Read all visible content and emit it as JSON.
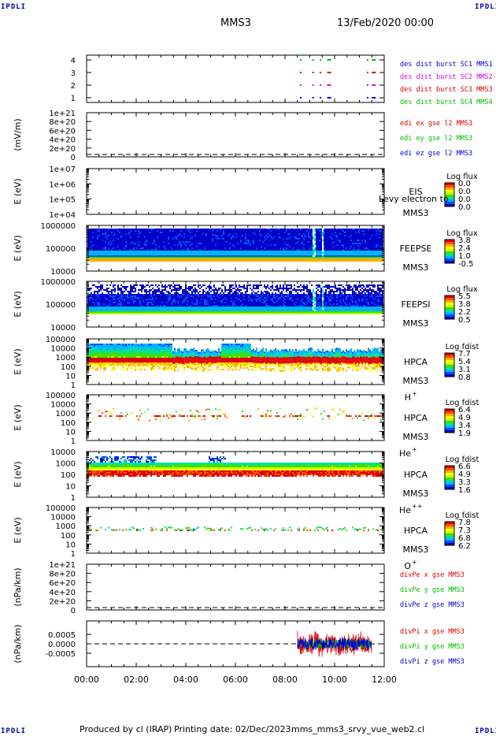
{
  "corner_label": "IPDLI",
  "header": {
    "spacecraft": "MMS3",
    "date": "13/Feb/2020 00:00"
  },
  "footer": {
    "produced_by": "Produced by cl (IRAP)",
    "printing_date": "Printing date: 02/Dec/2023",
    "script_name": "mms_mms3_srvy_vue_web2.cl"
  },
  "colors": {
    "mms1": "#0000cc",
    "mms2": "#dd00dd",
    "mms3": "#dd0000",
    "mms4": "#00bb00",
    "axis": "#000000"
  },
  "chart_data": [
    {
      "id": "burst",
      "type": "scatter",
      "ylabel": "",
      "ylim": [
        0.5,
        4.5
      ],
      "yticks": [
        "1",
        "2",
        "3",
        "4"
      ],
      "series": [
        {
          "name": "des dist burst SC1 MMS1",
          "y": 4,
          "x": [
            8.6,
            9.1,
            9.4,
            9.7,
            11.3,
            11.5
          ],
          "color": "#00bb00"
        },
        {
          "name": "des dist burst SC2 MMS2",
          "y": 3,
          "x": [
            8.6,
            9.1,
            9.4,
            9.7,
            11.3,
            11.5
          ],
          "color": "#dd0000"
        },
        {
          "name": "des dist burst SC3 MMS3",
          "y": 2,
          "x": [
            8.6,
            9.1,
            9.4,
            9.7,
            11.3,
            11.5
          ],
          "color": "#dd00dd"
        },
        {
          "name": "des dist burst SC4 MMS4",
          "y": 1,
          "x": [
            8.6,
            9.1,
            9.4,
            9.7,
            11.3,
            11.5
          ],
          "color": "#0000cc"
        }
      ],
      "labels": [
        {
          "text": "des dist burst SC1 MMS1",
          "color": "#0000cc"
        },
        {
          "text": "des dist burst SC2 MMS2",
          "color": "#dd00dd"
        },
        {
          "text": "des dist burst SC3 MMS3",
          "color": "#dd0000"
        },
        {
          "text": "des dist burst SC4 MMS4",
          "color": "#00bb00"
        }
      ]
    },
    {
      "id": "edi",
      "type": "line",
      "ylabel": "(mV/m)",
      "yticks": [
        "1e+21",
        "8e+20",
        "6e+20",
        "4e+20",
        "2e+20",
        "0"
      ],
      "zero_line": true,
      "labels": [
        {
          "text": "edi ex gse l2 MMS3",
          "color": "#dd0000"
        },
        {
          "text": "edi ey gse l2 MMS3",
          "color": "#00bb00"
        },
        {
          "text": "edi ez gse l2 MMS3",
          "color": "#0000cc"
        }
      ]
    },
    {
      "id": "eis",
      "type": "heatmap",
      "ylabel": "E (eV)",
      "yticks": [
        "1e+07",
        "1e+06",
        "1e+05",
        "1e+04"
      ],
      "instrument": "EIS",
      "sc": "MMS3",
      "note": "Levy electron to",
      "colorbar": {
        "title": "Log flux",
        "ticks": [
          "0.0",
          "0.0",
          "0.0",
          "0.0"
        ]
      }
    },
    {
      "id": "feepse",
      "type": "heatmap",
      "ylabel": "E (eV)",
      "yticks": [
        "1000000",
        "100000",
        "10000"
      ],
      "instrument": "FEEPSE",
      "sc": "MMS3",
      "colorbar": {
        "title": "Log flux",
        "ticks": [
          "3.8",
          "2.4",
          "1.0",
          "-0.5"
        ]
      }
    },
    {
      "id": "feepsi",
      "type": "heatmap",
      "ylabel": "E (eV)",
      "yticks": [
        "1000000",
        "100000",
        "10000"
      ],
      "instrument": "FEEPSI",
      "sc": "MMS3",
      "colorbar": {
        "title": "Log flux",
        "ticks": [
          "5.5",
          "3.8",
          "2.2",
          "0.5"
        ]
      }
    },
    {
      "id": "hpca_h",
      "type": "heatmap",
      "ylabel": "E (eV)",
      "yticks": [
        "100000",
        "10000",
        "1000",
        "100",
        "10",
        "1"
      ],
      "instrument": "HPCA",
      "sc": "MMS3",
      "species": "H",
      "species_sup": "+",
      "colorbar": {
        "title": "Log fdist",
        "ticks": [
          "7.7",
          "5.4",
          "3.1",
          "0.8"
        ]
      }
    },
    {
      "id": "hpca_he1",
      "type": "heatmap",
      "ylabel": "E (eV)",
      "yticks": [
        "100000",
        "10000",
        "1000",
        "100",
        "10",
        "1"
      ],
      "instrument": "HPCA",
      "sc": "MMS3",
      "species": "He",
      "species_sup": "+",
      "colorbar": {
        "title": "Log fdist",
        "ticks": [
          "6.4",
          "4.9",
          "3.4",
          "1.9"
        ]
      }
    },
    {
      "id": "hpca_he2",
      "type": "heatmap",
      "ylabel": "E (eV)",
      "yticks": [
        "10000",
        "1000",
        "100",
        "10",
        "1"
      ],
      "instrument": "HPCA",
      "sc": "MMS3",
      "species": "He",
      "species_sup": "++",
      "colorbar": {
        "title": "Log fdist",
        "ticks": [
          "6.6",
          "4.9",
          "3.3",
          "1.6"
        ]
      }
    },
    {
      "id": "hpca_o",
      "type": "heatmap",
      "ylabel": "E (eV)",
      "yticks": [
        "100000",
        "10000",
        "1000",
        "100",
        "10",
        "1"
      ],
      "instrument": "HPCA",
      "sc": "MMS3",
      "species": "O",
      "species_sup": "+",
      "colorbar": {
        "title": "Log fdist",
        "ticks": [
          "7.8",
          "7.3",
          "6.8",
          "6.2"
        ]
      }
    },
    {
      "id": "divpe",
      "type": "line",
      "ylabel": "(nPa/km)",
      "yticks": [
        "1e+21",
        "8e+20",
        "6e+20",
        "4e+20",
        "2e+20",
        "0"
      ],
      "zero_line": true,
      "labels": [
        {
          "text": "divPe x gse MMS3",
          "color": "#dd0000"
        },
        {
          "text": "divPe y gse MMS3",
          "color": "#00bb00"
        },
        {
          "text": "divPe z gse MMS3",
          "color": "#0000cc"
        }
      ]
    },
    {
      "id": "divpi",
      "type": "line",
      "ylabel": "(nPa/km)",
      "yticks": [
        "0.0005",
        "0.0000",
        "-0.0005"
      ],
      "ylim": [
        -0.00085,
        0.00085
      ],
      "zero_line": true,
      "active_interval": [
        8.5,
        11.5
      ],
      "labels": [
        {
          "text": "divPi x gse MMS3",
          "color": "#dd0000"
        },
        {
          "text": "divPi y gse MMS3",
          "color": "#00bb00"
        },
        {
          "text": "divPi z gse MMS3",
          "color": "#0000cc"
        }
      ]
    }
  ],
  "xaxis": {
    "ticks": [
      "00:00",
      "02:00",
      "04:00",
      "06:00",
      "08:00",
      "10:00",
      "12:00"
    ],
    "range_hours": [
      0,
      12
    ]
  }
}
